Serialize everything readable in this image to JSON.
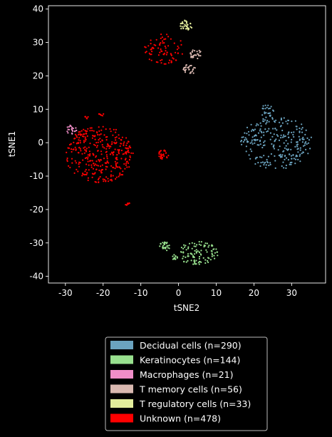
{
  "chart_data": {
    "type": "scatter",
    "xlabel": "tSNE2",
    "ylabel": "tSNE1",
    "xlim": [
      -34.5,
      39
    ],
    "ylim": [
      -42,
      41
    ],
    "xticks": [
      -30,
      -20,
      -10,
      0,
      10,
      20,
      30
    ],
    "yticks": [
      -40,
      -30,
      -20,
      -10,
      0,
      10,
      20,
      30,
      40
    ],
    "grid": false,
    "legend_position": "below",
    "background": "#000000",
    "series": [
      {
        "name": "Decidual cells (n=290)",
        "color": "#6ba3bf",
        "count": 290,
        "clusters": [
          {
            "cx": 26,
            "cy": 0,
            "rx": 9.5,
            "ry": 8,
            "n": 265
          },
          {
            "cx": 23.5,
            "cy": 9.5,
            "rx": 1.8,
            "ry": 2,
            "n": 25
          }
        ]
      },
      {
        "name": "Keratinocytes (n=144)",
        "color": "#98e08e",
        "count": 144,
        "clusters": [
          {
            "cx": 5,
            "cy": -33,
            "rx": 5.5,
            "ry": 3.5,
            "n": 105
          },
          {
            "cx": -3.5,
            "cy": -31,
            "rx": 1.6,
            "ry": 1.3,
            "n": 27
          },
          {
            "cx": -1,
            "cy": -34.3,
            "rx": 0.8,
            "ry": 0.8,
            "n": 12
          }
        ]
      },
      {
        "name": "Macrophages (n=21)",
        "color": "#f08ec8",
        "count": 21,
        "clusters": [
          {
            "cx": -28.5,
            "cy": 4,
            "rx": 1.5,
            "ry": 1.4,
            "n": 21
          }
        ]
      },
      {
        "name": "T memory cells (n=56)",
        "color": "#d9b8b0",
        "count": 56,
        "clusters": [
          {
            "cx": 4.5,
            "cy": 26.5,
            "rx": 1.7,
            "ry": 1.4,
            "n": 28
          },
          {
            "cx": 3,
            "cy": 22,
            "rx": 1.8,
            "ry": 1.5,
            "n": 28
          }
        ]
      },
      {
        "name": "T regulatory cells (n=33)",
        "color": "#e3ed9c",
        "count": 33,
        "clusters": [
          {
            "cx": 2,
            "cy": 35,
            "rx": 1.6,
            "ry": 1.7,
            "n": 33
          }
        ]
      },
      {
        "name": "Unknown (n=478)",
        "color": "#ff0000",
        "count": 478,
        "clusters": [
          {
            "cx": -21,
            "cy": -3.5,
            "rx": 9,
            "ry": 8.5,
            "n": 350
          },
          {
            "cx": -4,
            "cy": 28,
            "rx": 5.5,
            "ry": 4.5,
            "n": 80
          },
          {
            "cx": -4,
            "cy": -3.5,
            "rx": 1.5,
            "ry": 1.5,
            "n": 28
          },
          {
            "cx": -13.5,
            "cy": -18.5,
            "rx": 0.6,
            "ry": 0.7,
            "n": 8
          },
          {
            "cx": -20.5,
            "cy": 8.5,
            "rx": 0.7,
            "ry": 0.5,
            "n": 6
          },
          {
            "cx": -24.5,
            "cy": 7.5,
            "rx": 0.7,
            "ry": 0.5,
            "n": 6
          }
        ]
      }
    ]
  }
}
